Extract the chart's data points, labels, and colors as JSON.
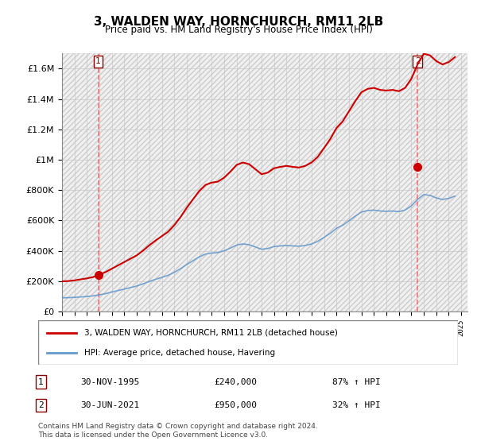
{
  "title": "3, WALDEN WAY, HORNCHURCH, RM11 2LB",
  "subtitle": "Price paid vs. HM Land Registry's House Price Index (HPI)",
  "hpi_label": "HPI: Average price, detached house, Havering",
  "property_label": "3, WALDEN WAY, HORNCHURCH, RM11 2LB (detached house)",
  "transaction1_date": "30-NOV-1995",
  "transaction1_price": 240000,
  "transaction1_hpi": "87% ↑ HPI",
  "transaction2_date": "30-JUN-2021",
  "transaction2_price": 950000,
  "transaction2_hpi": "32% ↑ HPI",
  "footer": "Contains HM Land Registry data © Crown copyright and database right 2024.\nThis data is licensed under the Open Government Licence v3.0.",
  "hatch_color": "#c8c8c8",
  "grid_color": "#c8c8c8",
  "hpi_line_color": "#6699cc",
  "property_line_color": "#cc0000",
  "dot_color": "#cc0000",
  "vline_color": "#ff6666",
  "ylim_max": 1700000,
  "background_color": "#ffffff"
}
